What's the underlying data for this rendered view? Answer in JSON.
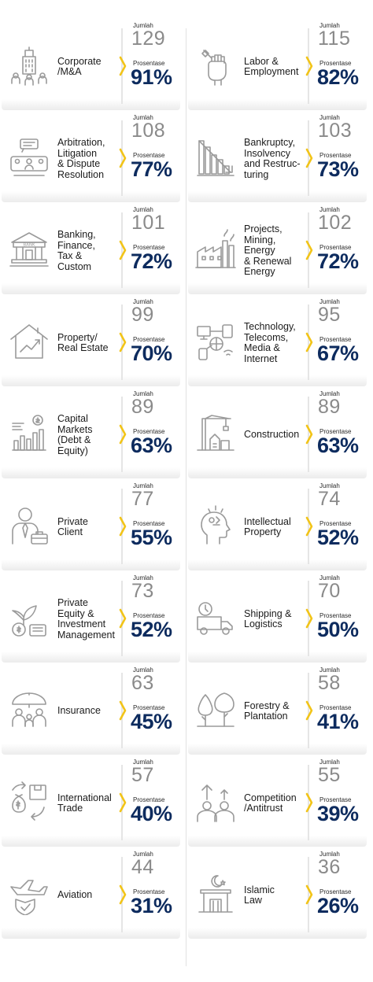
{
  "labels": {
    "jumlah": "Jumlah",
    "prosentase": "Prosentase"
  },
  "colors": {
    "accent": "#f2c418",
    "navy": "#0d2b5e",
    "gray": "#8a8a8a",
    "icon": "#9a9a9a"
  },
  "items": [
    {
      "label": "Corporate\n/M&A",
      "jumlah": "129",
      "prosentase": "91%",
      "icon": "building-icon"
    },
    {
      "label": "Labor &\nEmployment",
      "jumlah": "115",
      "prosentase": "82%",
      "icon": "raised-fist-wrench-icon"
    },
    {
      "label": "Arbitration,\nLitigation\n& Dispute\nResolution",
      "jumlah": "108",
      "prosentase": "77%",
      "icon": "meeting-table-icon"
    },
    {
      "label": "Bankruptcy,\nInsolvency\nand Restruc-\nturing",
      "jumlah": "103",
      "prosentase": "73%",
      "icon": "declining-chart-icon"
    },
    {
      "label": "Banking,\nFinance,\nTax &\nCustom",
      "jumlah": "101",
      "prosentase": "72%",
      "icon": "bank-icon"
    },
    {
      "label": "Projects,\nMining,\nEnergy\n& Renewal\nEnergy",
      "jumlah": "102",
      "prosentase": "72%",
      "icon": "factory-icon"
    },
    {
      "label": "Property/\nReal Estate",
      "jumlah": "99",
      "prosentase": "70%",
      "icon": "house-chart-icon"
    },
    {
      "label": "Technology,\nTelecoms,\nMedia &\nInternet",
      "jumlah": "95",
      "prosentase": "67%",
      "icon": "tech-network-icon"
    },
    {
      "label": "Capital\nMarkets\n(Debt &\nEquity)",
      "jumlah": "89",
      "prosentase": "63%",
      "icon": "bar-chart-coin-icon"
    },
    {
      "label": "Construction",
      "jumlah": "89",
      "prosentase": "63%",
      "icon": "crane-icon"
    },
    {
      "label": "Private\nClient",
      "jumlah": "77",
      "prosentase": "55%",
      "icon": "businessman-icon"
    },
    {
      "label": "Intellectual\nProperty",
      "jumlah": "74",
      "prosentase": "52%",
      "icon": "head-ideas-icon"
    },
    {
      "label": "Private\nEquity &\nInvestment\nManagement",
      "jumlah": "73",
      "prosentase": "52%",
      "icon": "money-plant-icon"
    },
    {
      "label": "Shipping &\nLogistics",
      "jumlah": "70",
      "prosentase": "50%",
      "icon": "delivery-truck-icon"
    },
    {
      "label": "Insurance",
      "jumlah": "63",
      "prosentase": "45%",
      "icon": "family-umbrella-icon"
    },
    {
      "label": "Forestry &\nPlantation",
      "jumlah": "58",
      "prosentase": "41%",
      "icon": "trees-icon"
    },
    {
      "label": "International\nTrade",
      "jumlah": "57",
      "prosentase": "40%",
      "icon": "trade-exchange-icon"
    },
    {
      "label": "Competition\n/Antitrust",
      "jumlah": "55",
      "prosentase": "39%",
      "icon": "competitors-icon"
    },
    {
      "label": "Aviation",
      "jumlah": "44",
      "prosentase": "31%",
      "icon": "airplane-shield-icon"
    },
    {
      "label": "Islamic\nLaw",
      "jumlah": "36",
      "prosentase": "26%",
      "icon": "crescent-pavilion-icon"
    }
  ]
}
